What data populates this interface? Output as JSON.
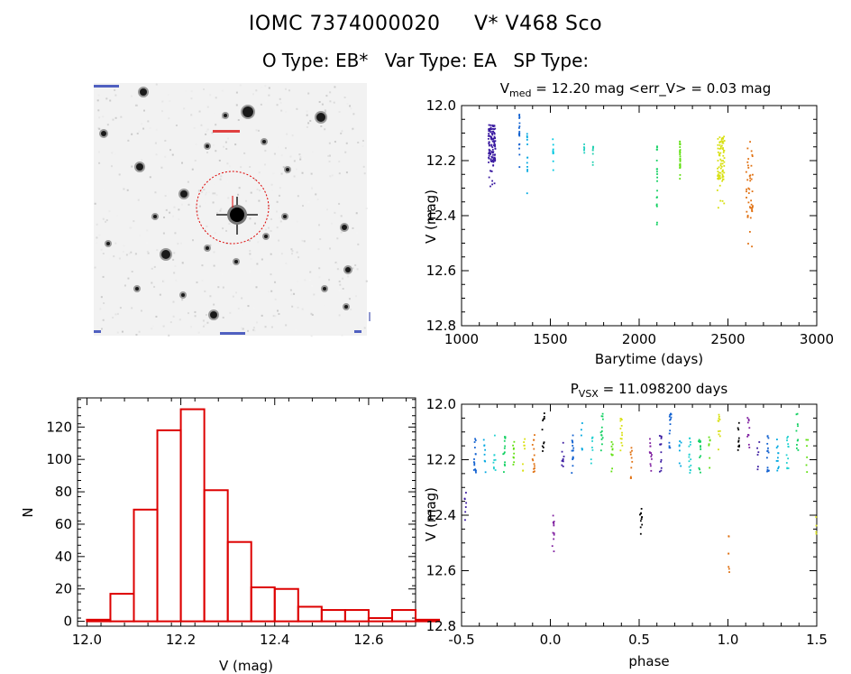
{
  "header": {
    "star_id": "IOMC 7374000020",
    "star_name": "V* V468 Sco",
    "o_type": "O Type: EB*",
    "var_type": "Var Type: EA",
    "sp_type": "SP Type:"
  },
  "colors": {
    "histogram": "#dd0000",
    "circle": "#dd0000",
    "epochs": [
      "#3a1aa0",
      "#1060d0",
      "#00a8e0",
      "#20d0d0",
      "#10d060",
      "#60e010",
      "#d8e010",
      "#e07010"
    ]
  },
  "chart_data": [
    {
      "id": "finder",
      "type": "image",
      "description_labels": []
    },
    {
      "id": "lightcurve",
      "type": "scatter",
      "title_main": "V",
      "title_sub": "med",
      "title_rest": " = 12.20 mag <err_V> = 0.03 mag",
      "xlabel": "Barytime (days)",
      "ylabel": "V (mag)",
      "xlim": [
        1000,
        3000
      ],
      "ylim": [
        12.8,
        12.0
      ],
      "xticks": [
        "1000",
        "1500",
        "2000",
        "2500",
        "3000"
      ],
      "yticks": [
        "12.0",
        "12.2",
        "12.4",
        "12.6",
        "12.8"
      ],
      "series": [
        {
          "x": 1170,
          "ymin": 12.07,
          "ymax": 12.3,
          "n": 120
        },
        {
          "x": 1325,
          "ymin": 12.03,
          "ymax": 12.28,
          "n": 18
        },
        {
          "x": 1370,
          "ymin": 12.08,
          "ymax": 12.36,
          "n": 12
        },
        {
          "x": 1515,
          "ymin": 12.11,
          "ymax": 12.26,
          "n": 10
        },
        {
          "x": 1690,
          "ymin": 12.14,
          "ymax": 12.2,
          "n": 6
        },
        {
          "x": 1740,
          "ymin": 12.14,
          "ymax": 12.28,
          "n": 8
        },
        {
          "x": 2100,
          "ymin": 12.14,
          "ymax": 12.52,
          "n": 20
        },
        {
          "x": 2230,
          "ymin": 12.13,
          "ymax": 12.29,
          "n": 30
        },
        {
          "x": 2460,
          "ymin": 12.11,
          "ymax": 12.38,
          "n": 80
        },
        {
          "x": 2620,
          "ymin": 12.13,
          "ymax": 12.6,
          "n": 45
        }
      ]
    },
    {
      "id": "histogram",
      "type": "bar",
      "xlabel": "V (mag)",
      "ylabel": "N",
      "xlim": [
        11.98,
        12.7
      ],
      "ylim": [
        -3,
        138
      ],
      "xticks": [
        "12.0",
        "12.2",
        "12.4",
        "12.6"
      ],
      "yticks": [
        "0",
        "20",
        "40",
        "60",
        "80",
        "100",
        "120"
      ],
      "bin_left": 12.0,
      "bin_width": 0.05,
      "values": [
        1,
        17,
        69,
        118,
        131,
        81,
        49,
        21,
        20,
        9,
        7,
        7,
        2,
        7,
        1
      ]
    },
    {
      "id": "phased",
      "type": "scatter",
      "title_main": "P",
      "title_sub": "VSX",
      "title_rest": " = 11.098200 days",
      "xlabel": "phase",
      "ylabel": "V (mag)",
      "xlim": [
        -0.5,
        1.5
      ],
      "ylim": [
        12.8,
        12.0
      ],
      "xticks": [
        "-0.5",
        "0.0",
        "0.5",
        "1.0",
        "1.5"
      ],
      "yticks": [
        "12.0",
        "12.2",
        "12.4",
        "12.6",
        "12.8"
      ],
      "period_days": 11.0982,
      "eclipse_phases": [
        0.0,
        0.5,
        1.0
      ],
      "eclipse_depth_primary": 12.58,
      "eclipse_depth_secondary": 12.45,
      "baseline": 12.18
    }
  ]
}
